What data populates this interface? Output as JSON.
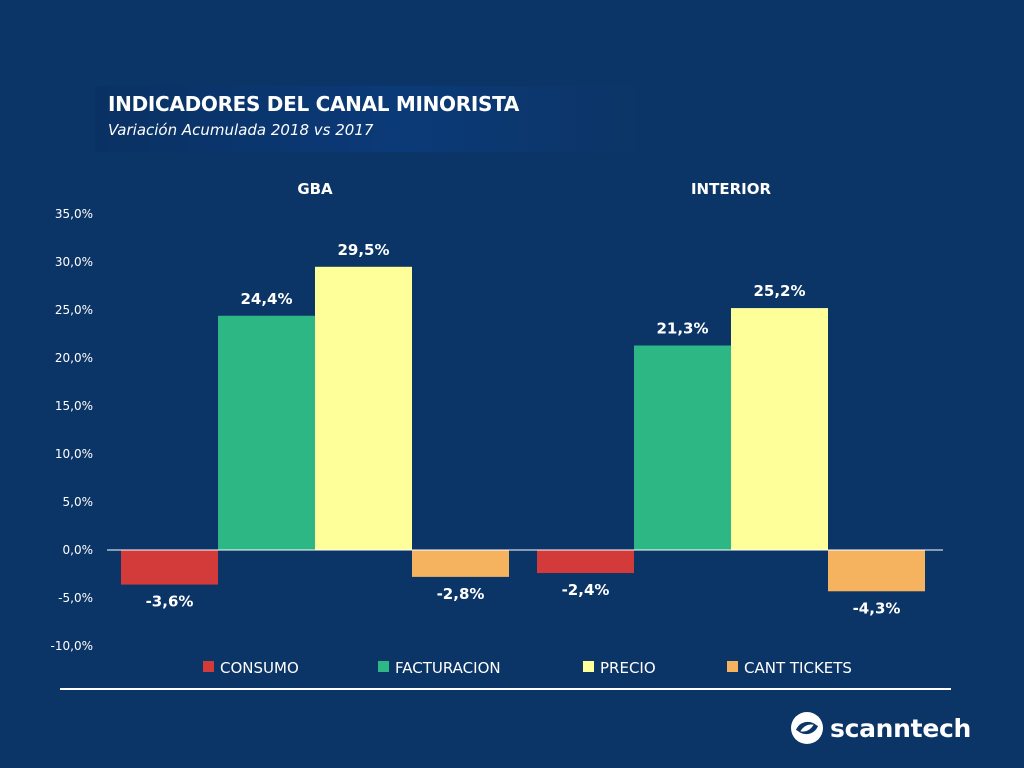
{
  "header": {
    "title": "INDICADORES DEL CANAL MINORISTA",
    "subtitle": "Variación Acumulada 2018 vs 2017"
  },
  "brand": {
    "logo_text": "scanntech"
  },
  "colors": {
    "background": "#0c3567",
    "consumo": "#d33b3b",
    "facturacion": "#2db785",
    "precio": "#ffff99",
    "cant_tickets": "#f6b35f"
  },
  "chart_data": {
    "type": "bar",
    "categories": [
      "GBA",
      "INTERIOR"
    ],
    "series": [
      {
        "name": "CONSUMO",
        "values": [
          -3.6,
          -2.4
        ],
        "labels": [
          "-3,6%",
          "-2,4%"
        ],
        "color": "#d33b3b"
      },
      {
        "name": "FACTURACION",
        "values": [
          24.4,
          21.3
        ],
        "labels": [
          "24,4%",
          "21,3%"
        ],
        "color": "#2db785"
      },
      {
        "name": "PRECIO",
        "values": [
          29.5,
          25.2
        ],
        "labels": [
          "29,5%",
          "25,2%"
        ],
        "color": "#ffff99"
      },
      {
        "name": "CANT TICKETS",
        "values": [
          -2.8,
          -4.3
        ],
        "labels": [
          "-2,8%",
          "-4,3%"
        ],
        "color": "#f6b35f"
      }
    ],
    "yticks": [
      "35,0%",
      "30,0%",
      "25,0%",
      "20,0%",
      "15,0%",
      "10,0%",
      "5,0%",
      "0,0%",
      "-5,0%",
      "-10,0%"
    ],
    "ytick_values": [
      35,
      30,
      25,
      20,
      15,
      10,
      5,
      0,
      -5,
      -10
    ],
    "ylim": [
      -10,
      35
    ],
    "legend_position": "bottom",
    "grid": false
  }
}
